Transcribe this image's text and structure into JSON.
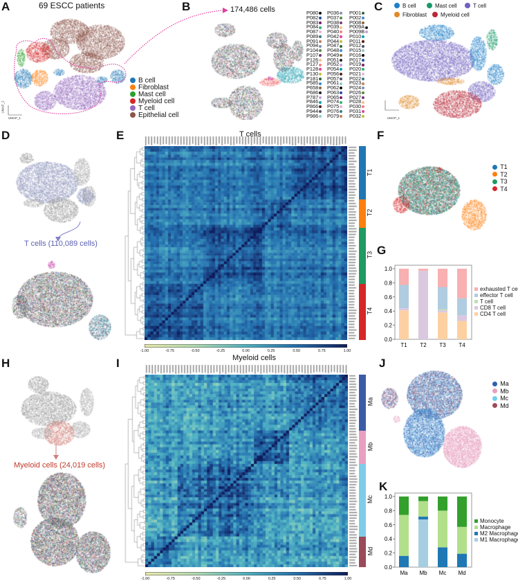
{
  "panels": {
    "A": "A",
    "B": "B",
    "C": "C",
    "D": "D",
    "E": "E",
    "F": "F",
    "G": "G",
    "H": "H",
    "I": "I",
    "J": "J",
    "K": "K"
  },
  "panelA": {
    "title": "69 ESCC patients",
    "legend": [
      {
        "label": "B cell",
        "color": "#1f77b4"
      },
      {
        "label": "Fibroblast",
        "color": "#ff7f0e"
      },
      {
        "label": "Mast cell",
        "color": "#2ca02c"
      },
      {
        "label": "Myeloid cell",
        "color": "#d62728"
      },
      {
        "label": "T cell",
        "color": "#9467bd"
      },
      {
        "label": "Epithelial cell",
        "color": "#8c564b"
      }
    ],
    "arrow_color": "#e040a0"
  },
  "panelB": {
    "title": "174,486  cells",
    "patients": [
      [
        "P080",
        "P082",
        "P083",
        "P084",
        "P087",
        "P089",
        "P091",
        "P094",
        "P104",
        "P107",
        "P126",
        "P127",
        "P128",
        "P130",
        "P181",
        "P585",
        "P658",
        "P686",
        "P787",
        "P846",
        "P866",
        "P944",
        "P986"
      ],
      [
        "P036",
        "P037",
        "P038",
        "P039",
        "P040",
        "P042",
        "P044",
        "P047",
        "P048",
        "P049",
        "P051",
        "P052",
        "P054",
        "P056",
        "P057",
        "P061",
        "P062",
        "P063",
        "P065",
        "P074",
        "P075",
        "P076",
        "P079"
      ],
      [
        "P001",
        "P002",
        "P008",
        "P009A",
        "P009B",
        "P010",
        "P011",
        "P012",
        "P015",
        "P016",
        "P017",
        "P019",
        "P020",
        "P021",
        "P022",
        "P023",
        "P024",
        "P026",
        "P027",
        "P028",
        "P030",
        "P031",
        "P032"
      ]
    ],
    "palette": [
      "#111111",
      "#1f4fa0",
      "#7a1f6a",
      "#2bb673",
      "#e7b3d8",
      "#3a7a8a",
      "#c08060",
      "#8090b0",
      "#5a8a3a",
      "#7a3a7a",
      "#f5c08a",
      "#f08080",
      "#e040a0",
      "#c0c040",
      "#2a6a3a",
      "#3a8ad0",
      "#8a6a3a",
      "#222222",
      "#c0a0d0",
      "#10a0b0",
      "#5a1a1a",
      "#505070",
      "#90c8c8"
    ]
  },
  "panelC": {
    "legend": [
      {
        "label": "B cell",
        "color": "#1f7fc8"
      },
      {
        "label": "Mast cell",
        "color": "#1a9a6a"
      },
      {
        "label": "T cell",
        "color": "#7060c0"
      },
      {
        "label": "Fibroblast",
        "color": "#e08a2a"
      },
      {
        "label": "Myeloid cell",
        "color": "#b82a38"
      }
    ]
  },
  "umap_axes": {
    "x": "UMAP_1",
    "y": "UMAP_2"
  },
  "panelD": {
    "caption": "T cells (110,089 cells)",
    "color": "#5a5fb0"
  },
  "panelE": {
    "title": "T cells",
    "groups": [
      {
        "label": "T1",
        "color": "#1f77b4"
      },
      {
        "label": "T2",
        "color": "#ff7f0e"
      },
      {
        "label": "T3",
        "color": "#1f9a60"
      },
      {
        "label": "T4",
        "color": "#d62728"
      }
    ],
    "colorbar_ticks": [
      "-1.00",
      "-0.75",
      "-0.50",
      "-0.25",
      "0.00",
      "0.25",
      "0.50",
      "0.75",
      "1.00"
    ]
  },
  "panelF": {
    "legend": [
      {
        "label": "T1",
        "color": "#1f77b4"
      },
      {
        "label": "T2",
        "color": "#ff7f0e"
      },
      {
        "label": "T3",
        "color": "#1f9a60"
      },
      {
        "label": "T4",
        "color": "#d62728"
      }
    ]
  },
  "panelH": {
    "caption": "Myeloid cells (24,019 cells)",
    "color": "#c0392b"
  },
  "panelI": {
    "title": "Myeloid cells",
    "groups": [
      {
        "label": "Ma",
        "color": "#3a5ca8"
      },
      {
        "label": "Mb",
        "color": "#e8a0c0"
      },
      {
        "label": "Mc",
        "color": "#7ecde8"
      },
      {
        "label": "Md",
        "color": "#9a4a58"
      }
    ],
    "colorbar_ticks": [
      "-1.00",
      "-0.75",
      "-0.50",
      "-0.25",
      "0.00",
      "0.25",
      "0.50",
      "0.75",
      "1.00"
    ]
  },
  "panelJ": {
    "legend": [
      {
        "label": "Ma",
        "color": "#2f5eb5"
      },
      {
        "label": "Mb",
        "color": "#e8a0c0"
      },
      {
        "label": "Mc",
        "color": "#6ecff0"
      },
      {
        "label": "Md",
        "color": "#a04a58"
      }
    ]
  },
  "chart_data": [
    {
      "id": "G",
      "type": "bar",
      "stacked": true,
      "categories": [
        "T1",
        "T2",
        "T3",
        "T4"
      ],
      "ylim": [
        0,
        1
      ],
      "yticks": [
        "0.0",
        "0.2",
        "0.4",
        "0.6",
        "0.8",
        "1.0"
      ],
      "legend_position": "right",
      "series": [
        {
          "name": "CD4 T cell",
          "color": "#fdd0a2",
          "values": [
            0.41,
            0.0,
            0.38,
            0.26
          ]
        },
        {
          "name": "CD8 T cell",
          "color": "#dac8e0",
          "values": [
            0.03,
            0.97,
            0.03,
            0.08
          ]
        },
        {
          "name": "T cell",
          "color": "#c0e0b0",
          "values": [
            0.0,
            0.0,
            0.015,
            0.0
          ]
        },
        {
          "name": "effector T cell",
          "color": "#b0cce0",
          "values": [
            0.33,
            0.0,
            0.315,
            0.24
          ]
        },
        {
          "name": "exhausted T cell",
          "color": "#f8b0b0",
          "values": [
            0.23,
            0.03,
            0.26,
            0.42
          ]
        }
      ]
    },
    {
      "id": "K",
      "type": "bar",
      "stacked": true,
      "categories": [
        "Ma",
        "Mb",
        "Mc",
        "Md"
      ],
      "ylim": [
        0,
        1
      ],
      "yticks": [
        "0.0",
        "0.2",
        "0.4",
        "0.6",
        "0.8",
        "1.0"
      ],
      "legend_position": "right",
      "series": [
        {
          "name": "M1 Macrophage",
          "color": "#a6cee3",
          "values": [
            0.0,
            0.675,
            0.0,
            0.0
          ]
        },
        {
          "name": "M2 Macrophage",
          "color": "#1f78b4",
          "values": [
            0.16,
            0.04,
            0.28,
            0.19
          ]
        },
        {
          "name": "Macrophage",
          "color": "#b2df8a",
          "values": [
            0.58,
            0.22,
            0.52,
            0.38
          ]
        },
        {
          "name": "Monocyte",
          "color": "#33a02c",
          "values": [
            0.26,
            0.065,
            0.2,
            0.43
          ]
        }
      ]
    }
  ]
}
